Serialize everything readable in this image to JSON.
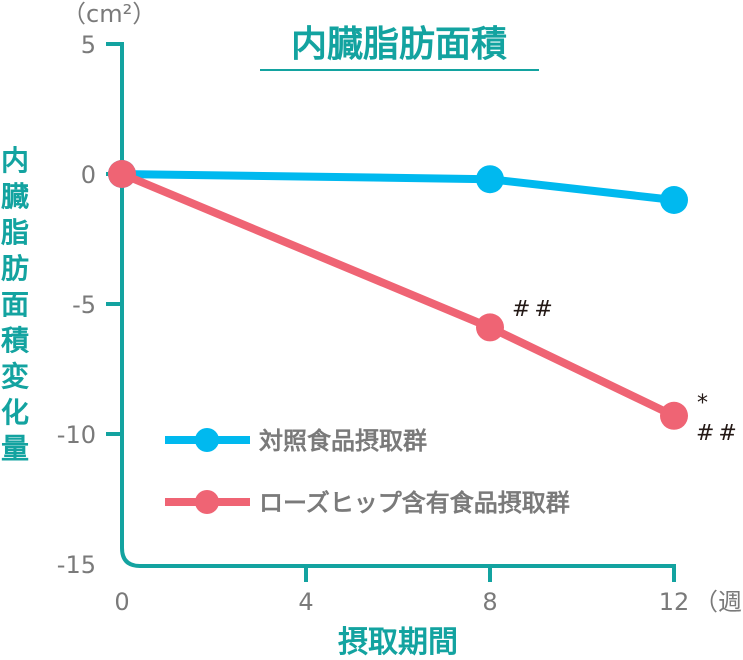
{
  "chart_data": {
    "type": "line",
    "title": "内臓脂肪面積",
    "xlabel": "摂取期間",
    "xunit": "（週）",
    "ylabel": "内臓脂肪面積変化量",
    "yunit": "（cm²）",
    "x": [
      0,
      8,
      12
    ],
    "xticks": [
      "0",
      "4",
      "8",
      "12"
    ],
    "yticks": [
      "5",
      "0",
      "-5",
      "-10",
      "-15"
    ],
    "ylim": [
      -15,
      5
    ],
    "xlim": [
      0,
      12
    ],
    "grid": false,
    "legend_position": "lower-left inside plot",
    "series": [
      {
        "name": "対照食品摂取群",
        "color": "#00b9ef",
        "values": [
          0,
          -0.2,
          -1.0
        ]
      },
      {
        "name": "ローズヒップ含有食品摂取群",
        "color": "#ef6474",
        "values": [
          0,
          -5.9,
          -9.3
        ]
      }
    ],
    "annotations": [
      {
        "series": "ローズヒップ含有食品摂取群",
        "x": 8,
        "text": "##"
      },
      {
        "series": "ローズヒップ含有食品摂取群",
        "x": 12,
        "text": "*"
      },
      {
        "series": "ローズヒップ含有食品摂取群",
        "x": 12,
        "text": "##"
      }
    ]
  },
  "colors": {
    "axis": "#13a3a0",
    "tick_text": "#7a7a7a",
    "title": "#13a3a0",
    "marks": "#231815"
  }
}
